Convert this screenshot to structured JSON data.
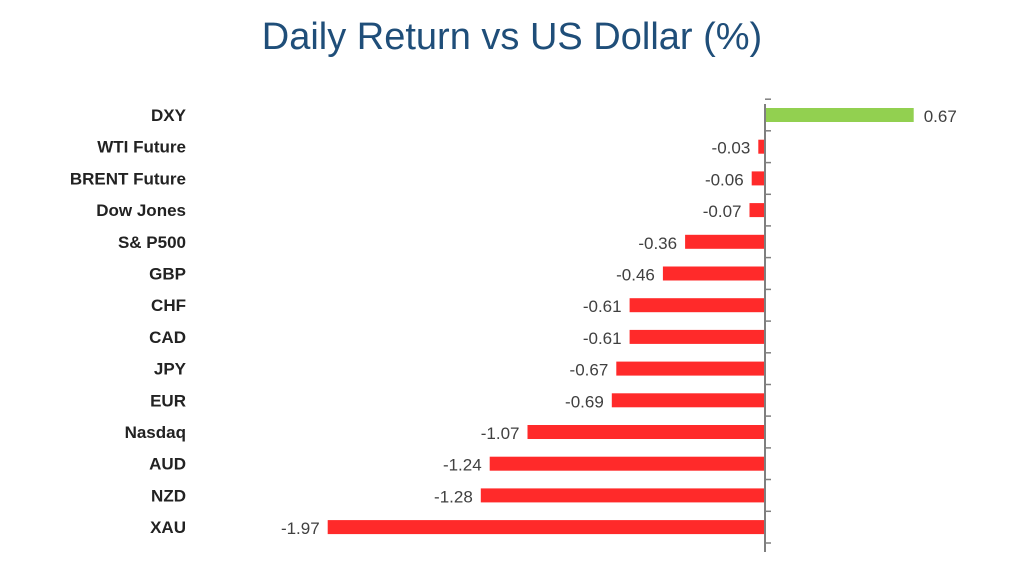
{
  "chart_data": {
    "type": "bar",
    "orientation": "horizontal",
    "title": "Daily Return vs US Dollar (%)",
    "xlabel": "",
    "ylabel": "",
    "grid": false,
    "legend": "none",
    "categories": [
      "DXY",
      "WTI Future",
      "BRENT Future",
      "Dow Jones",
      "S& P500",
      "GBP",
      "CHF",
      "CAD",
      "JPY",
      "EUR",
      "Nasdaq",
      "AUD",
      "NZD",
      "XAU"
    ],
    "values": [
      0.67,
      -0.03,
      -0.06,
      -0.07,
      -0.36,
      -0.46,
      -0.61,
      -0.61,
      -0.67,
      -0.69,
      -1.07,
      -1.24,
      -1.28,
      -1.97
    ],
    "value_labels": [
      "0.67",
      "-0.03",
      "-0.06",
      "-0.07",
      "-0.36",
      "-0.46",
      "-0.61",
      "-0.61",
      "-0.67",
      "-0.69",
      "-1.07",
      "-1.24",
      "-1.28",
      "-1.97"
    ],
    "colors": {
      "positive": "#92d050",
      "negative": "#ff2a2a",
      "axis": "#7f7f7f",
      "title": "#1f4e79"
    }
  }
}
